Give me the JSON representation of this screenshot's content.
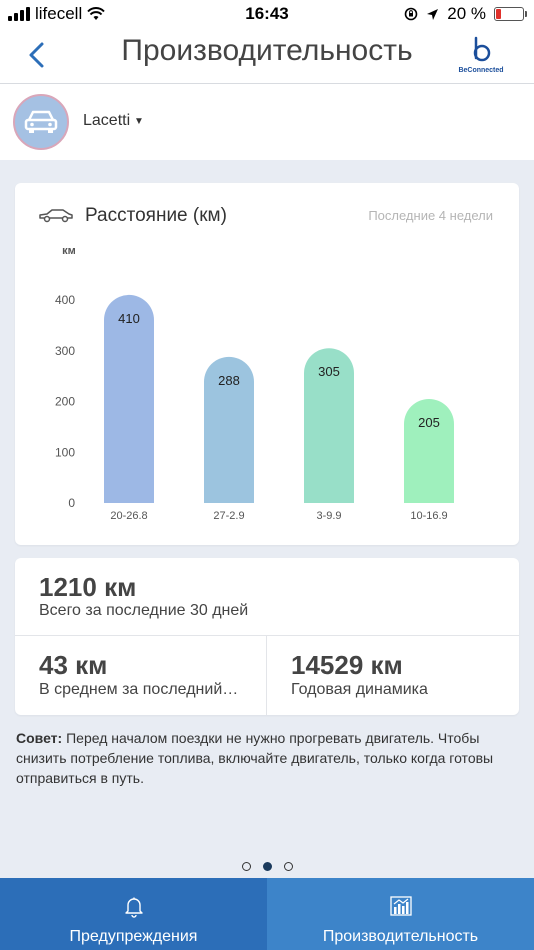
{
  "status_bar": {
    "carrier": "lifecell",
    "time": "16:43",
    "battery": "20 %"
  },
  "header": {
    "title": "Производительность",
    "logo_text": "BeConnected"
  },
  "car": {
    "name": "Lacetti"
  },
  "chart_card": {
    "title": "Расстояние (км)",
    "period": "Последние 4 недели"
  },
  "chart_data": {
    "type": "bar",
    "ylabel": "км",
    "ylim": [
      0,
      400
    ],
    "yticks": [
      "400",
      "300",
      "200",
      "100",
      "0"
    ],
    "categories": [
      "20-26.8",
      "27-2.9",
      "3-9.9",
      "10-16.9"
    ],
    "values": [
      410,
      288,
      305,
      205
    ],
    "value_labels": [
      "410",
      "288",
      "305",
      "205"
    ],
    "bar_colors": [
      "#9db8e5",
      "#9cc4df",
      "#98dfc8",
      "#9ff0bd"
    ],
    "grid": false
  },
  "stats": {
    "total_value": "1210 км",
    "total_label": "Всего за последние 30 дней",
    "avg_value": "43 км",
    "avg_label": "В среднем за последний…",
    "yearly_value": "14529 км",
    "yearly_label": "Годовая динамика"
  },
  "tip": {
    "prefix": "Совет:",
    "text": " Перед началом поездки не нужно прогревать двигатель. Чтобы снизить потребление топлива, включайте двигатель, только когда готовы отправиться в путь."
  },
  "tabs": {
    "alerts_label": "Предупреждения",
    "performance_label": "Производительность"
  }
}
